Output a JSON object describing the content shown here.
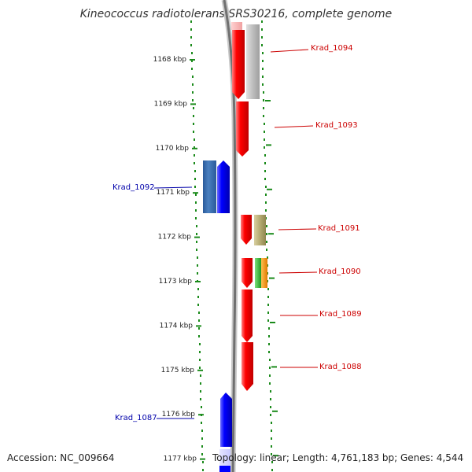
{
  "header": {
    "title": "Kineococcus radiotolerans SRS30216, complete genome"
  },
  "footer": {
    "accession": "Accession: NC_009664",
    "summary": "Topology: linear; Length: 4,761,183 bp; Genes: 4,544"
  },
  "scale_labels": [
    "1168 kbp",
    "1169 kbp",
    "1170 kbp",
    "1171 kbp",
    "1172 kbp",
    "1173 kbp",
    "1174 kbp",
    "1175 kbp",
    "1176 kbp",
    "1177 kbp"
  ],
  "gene_labels": [
    {
      "text": "Krad_1094",
      "color": "#cc0000",
      "side": "right"
    },
    {
      "text": "Krad_1093",
      "color": "#cc0000",
      "side": "right"
    },
    {
      "text": "Krad_1092",
      "color": "#0000aa",
      "side": "left"
    },
    {
      "text": "Krad_1091",
      "color": "#cc0000",
      "side": "right"
    },
    {
      "text": "Krad_1090",
      "color": "#cc0000",
      "side": "right"
    },
    {
      "text": "Krad_1089",
      "color": "#cc0000",
      "side": "right"
    },
    {
      "text": "Krad_1088",
      "color": "#cc0000",
      "side": "right"
    },
    {
      "text": "Krad_1087",
      "color": "#0000aa",
      "side": "left"
    }
  ],
  "colors": {
    "forward_strand": "#ff0000",
    "reverse_strand": "#0000ff",
    "backbone": "#808080",
    "tick": "#1a8a1a"
  }
}
